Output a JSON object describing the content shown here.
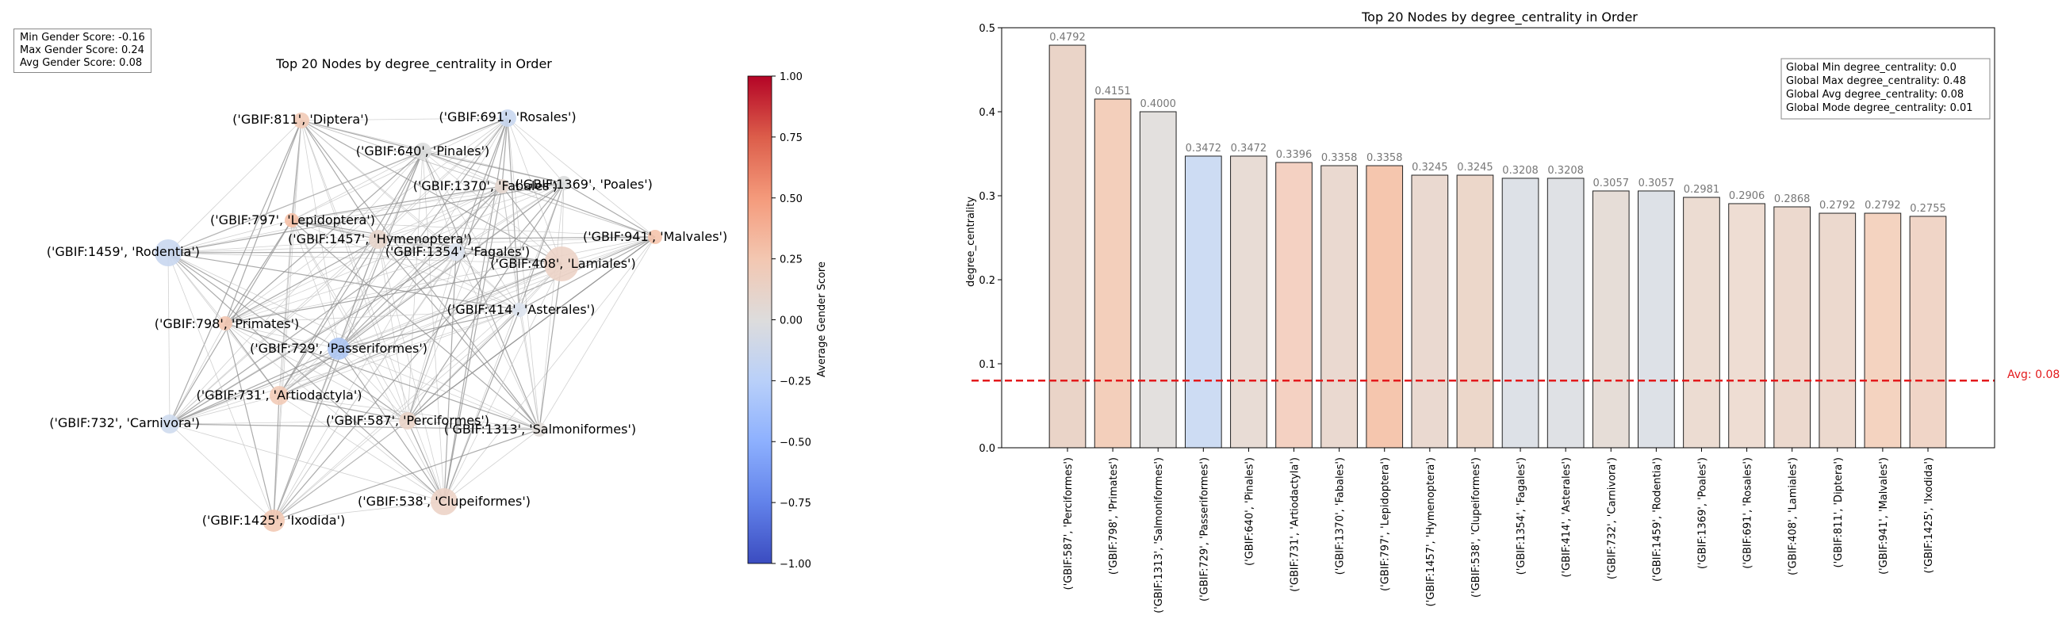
{
  "stats_box": {
    "min": "Min Gender Score: -0.16",
    "max": "Max Gender Score: 0.24",
    "avg": "Avg Gender Score: 0.08"
  },
  "network": {
    "title": "Top 20 Nodes by degree_centrality in Order",
    "colorbar_label": "Average Gender Score",
    "colorbar_ticks": [
      "1.00",
      "0.75",
      "0.50",
      "0.25",
      "0.00",
      "−0.25",
      "−0.50",
      "−0.75",
      "−1.00"
    ],
    "nodes": [
      {
        "label": "('GBIF:811', 'Diptera')",
        "color": "#f2cbb7"
      },
      {
        "label": "('GBIF:691', 'Rosales')",
        "color": "#c9d7f0"
      },
      {
        "label": "('GBIF:640', 'Pinales')",
        "color": "#dcdddd"
      },
      {
        "label": "('GBIF:1370', 'Fabales')",
        "color": "#e6d7cf"
      },
      {
        "label": "('GBIF:1369', 'Poales')",
        "color": "#dcdddd"
      },
      {
        "label": "('GBIF:797', 'Lepidoptera')",
        "color": "#f5c0a6"
      },
      {
        "label": "('GBIF:1459', 'Rodentia')",
        "color": "#c9d7f0"
      },
      {
        "label": "('GBIF:1457', 'Hymenoptera')",
        "color": "#e8d6cc"
      },
      {
        "label": "('GBIF:1354', 'Fagales')",
        "color": "#dde3ee"
      },
      {
        "label": "('GBIF:941', 'Malvales')",
        "color": "#f5c4ac"
      },
      {
        "label": "('GBIF:408', 'Lamiales')",
        "color": "#ecd3c6"
      },
      {
        "label": "('GBIF:414', 'Asterales')",
        "color": "#dde3ee"
      },
      {
        "label": "('GBIF:798', 'Primates')",
        "color": "#f3c7b1"
      },
      {
        "label": "('GBIF:729', 'Passeriformes')",
        "color": "#aec7f3"
      },
      {
        "label": "('GBIF:731', 'Artiodactyla')",
        "color": "#f2cbb7"
      },
      {
        "label": "('GBIF:732', 'Carnivora')",
        "color": "#cfdbee"
      },
      {
        "label": "('GBIF:587', 'Perciformes')",
        "color": "#ead4c8"
      },
      {
        "label": "('GBIF:1313', 'Salmoniformes')",
        "color": "#e3dfdc"
      },
      {
        "label": "('GBIF:538', 'Clupeiformes')",
        "color": "#ecd3c6"
      },
      {
        "label": "('GBIF:1425', 'Ixodida')",
        "color": "#f2c9b4"
      }
    ]
  },
  "chart_data": {
    "type": "bar",
    "title": "Top 20 Nodes by degree_centrality in Order",
    "xlabel": "",
    "ylabel": "degree_centrality",
    "ylim": [
      0,
      0.5
    ],
    "yticks": [
      "0.0",
      "0.1",
      "0.2",
      "0.3",
      "0.4",
      "0.5"
    ],
    "grid": false,
    "categories": [
      "('GBIF:587', 'Perciformes')",
      "('GBIF:798', 'Primates')",
      "('GBIF:1313', 'Salmoniformes')",
      "('GBIF:729', 'Passeriformes')",
      "('GBIF:640', 'Pinales')",
      "('GBIF:731', 'Artiodactyla')",
      "('GBIF:1370', 'Fabales')",
      "('GBIF:797', 'Lepidoptera')",
      "('GBIF:1457', 'Hymenoptera')",
      "('GBIF:538', 'Clupeiformes')",
      "('GBIF:1354', 'Fagales')",
      "('GBIF:414', 'Asterales')",
      "('GBIF:732', 'Carnivora')",
      "('GBIF:1459', 'Rodentia')",
      "('GBIF:1369', 'Poales')",
      "('GBIF:691', 'Rosales')",
      "('GBIF:408', 'Lamiales')",
      "('GBIF:811', 'Diptera')",
      "('GBIF:941', 'Malvales')",
      "('GBIF:1425', 'Ixodida')"
    ],
    "values": [
      0.4792,
      0.4151,
      0.4,
      0.3472,
      0.3472,
      0.3396,
      0.3358,
      0.3358,
      0.3245,
      0.3245,
      0.3208,
      0.3208,
      0.3057,
      0.3057,
      0.2981,
      0.2906,
      0.2868,
      0.2792,
      0.2792,
      0.2755
    ],
    "value_labels": [
      "0.4792",
      "0.4151",
      "0.4000",
      "0.3472",
      "0.3472",
      "0.3396",
      "0.3358",
      "0.3358",
      "0.3245",
      "0.3245",
      "0.3208",
      "0.3208",
      "0.3057",
      "0.3057",
      "0.2981",
      "0.2906",
      "0.2868",
      "0.2792",
      "0.2792",
      "0.2755"
    ],
    "bar_colors": [
      "#ead4c8",
      "#f3cfbb",
      "#e3e0de",
      "#cddcf3",
      "#e8dcd5",
      "#f4d1c2",
      "#ead9d0",
      "#f5c6ae",
      "#ead9d0",
      "#ecd7ca",
      "#dde1e7",
      "#dfe1e5",
      "#e6ddd7",
      "#dde1e7",
      "#ecdcd2",
      "#eeddd3",
      "#ecd9ce",
      "#ecd9ce",
      "#f4d3c0",
      "#f0d5c7"
    ],
    "avg_line": {
      "value": 0.08,
      "label": "Avg: 0.08",
      "color": "#e31a1c"
    },
    "info_box": [
      "Global Min degree_centrality: 0.0",
      "Global Max degree_centrality: 0.48",
      "Global Avg degree_centrality: 0.08",
      "Global Mode degree_centrality: 0.01"
    ]
  }
}
